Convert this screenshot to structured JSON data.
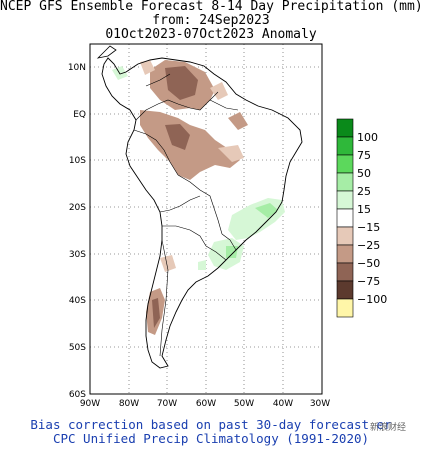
{
  "title": {
    "line1": "NCEP GFS Ensemble Forecast 8-14 Day Precipitation (mm)",
    "line2": "from: 24Sep2023",
    "line3": "01Oct2023-07Oct2023 Anomaly"
  },
  "axes": {
    "lat_labels": [
      "10N",
      "EQ",
      "10S",
      "20S",
      "30S",
      "40S",
      "50S",
      "60S"
    ],
    "lon_labels": [
      "90W",
      "80W",
      "70W",
      "60W",
      "50W",
      "40W",
      "30W"
    ]
  },
  "legend": {
    "labels": [
      "100",
      "75",
      "50",
      "25",
      "15",
      "−15",
      "−25",
      "−50",
      "−75",
      "−100"
    ],
    "colors": [
      "#0a8a1a",
      "#2fb83a",
      "#5cd85c",
      "#a6eda6",
      "#d6f7d6",
      "#ffffff",
      "#e6c9b8",
      "#c49a86",
      "#8f6455",
      "#5c3a2e",
      "#fff6a8"
    ]
  },
  "footer": {
    "line1": "Bias correction based on past 30-day forecast er",
    "line2": "CPC Unified Precip Climatology (1991-2020)"
  },
  "watermark": "新浪财经"
}
